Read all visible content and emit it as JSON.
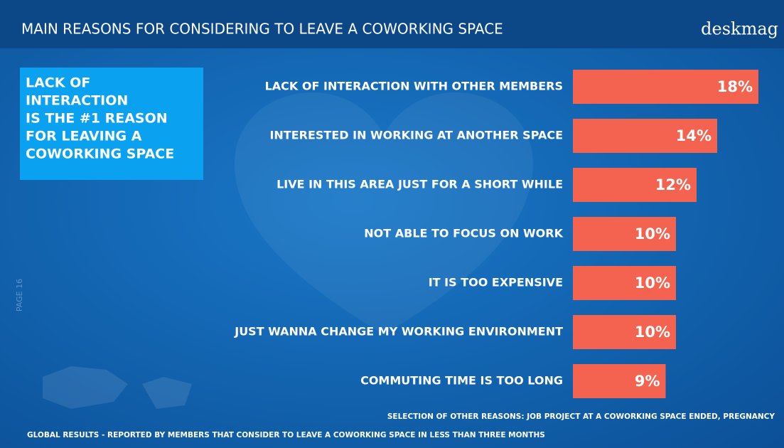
{
  "chart_data": {
    "type": "hbar",
    "title": "MAIN REASONS FOR CONSIDERING TO LEAVE A COWORKING SPACE",
    "brand": "deskmag",
    "callout": [
      "LACK OF",
      "INTERACTION",
      "IS THE #1 REASON",
      "FOR LEAVING A",
      "COWORKING SPACE"
    ],
    "page_label": "PAGE 16",
    "categories": [
      "LACK OF INTERACTION WITH OTHER MEMBERS",
      "INTERESTED IN WORKING AT ANOTHER SPACE",
      "LIVE IN THIS AREA JUST FOR A SHORT WHILE",
      "NOT ABLE TO FOCUS ON WORK",
      "IT IS TOO EXPENSIVE",
      "JUST WANNA CHANGE MY WORKING ENVIRONMENT",
      "COMMUTING TIME IS TOO LONG"
    ],
    "values": [
      18,
      14,
      12,
      10,
      10,
      10,
      9
    ],
    "value_labels": [
      "18%",
      "14%",
      "12%",
      "10%",
      "10%",
      "10%",
      "9%"
    ],
    "color": "#f4634f",
    "notes": [
      "SELECTION OF OTHER REASONS: JOB PROJECT AT A COWORKING SPACE ENDED, PREGNANCY",
      "GLOBAL RESULTS - REPORTED BY MEMBERS THAT CONSIDER TO LEAVE A COWORKING SPACE IN LESS THAN THREE MONTHS"
    ]
  }
}
